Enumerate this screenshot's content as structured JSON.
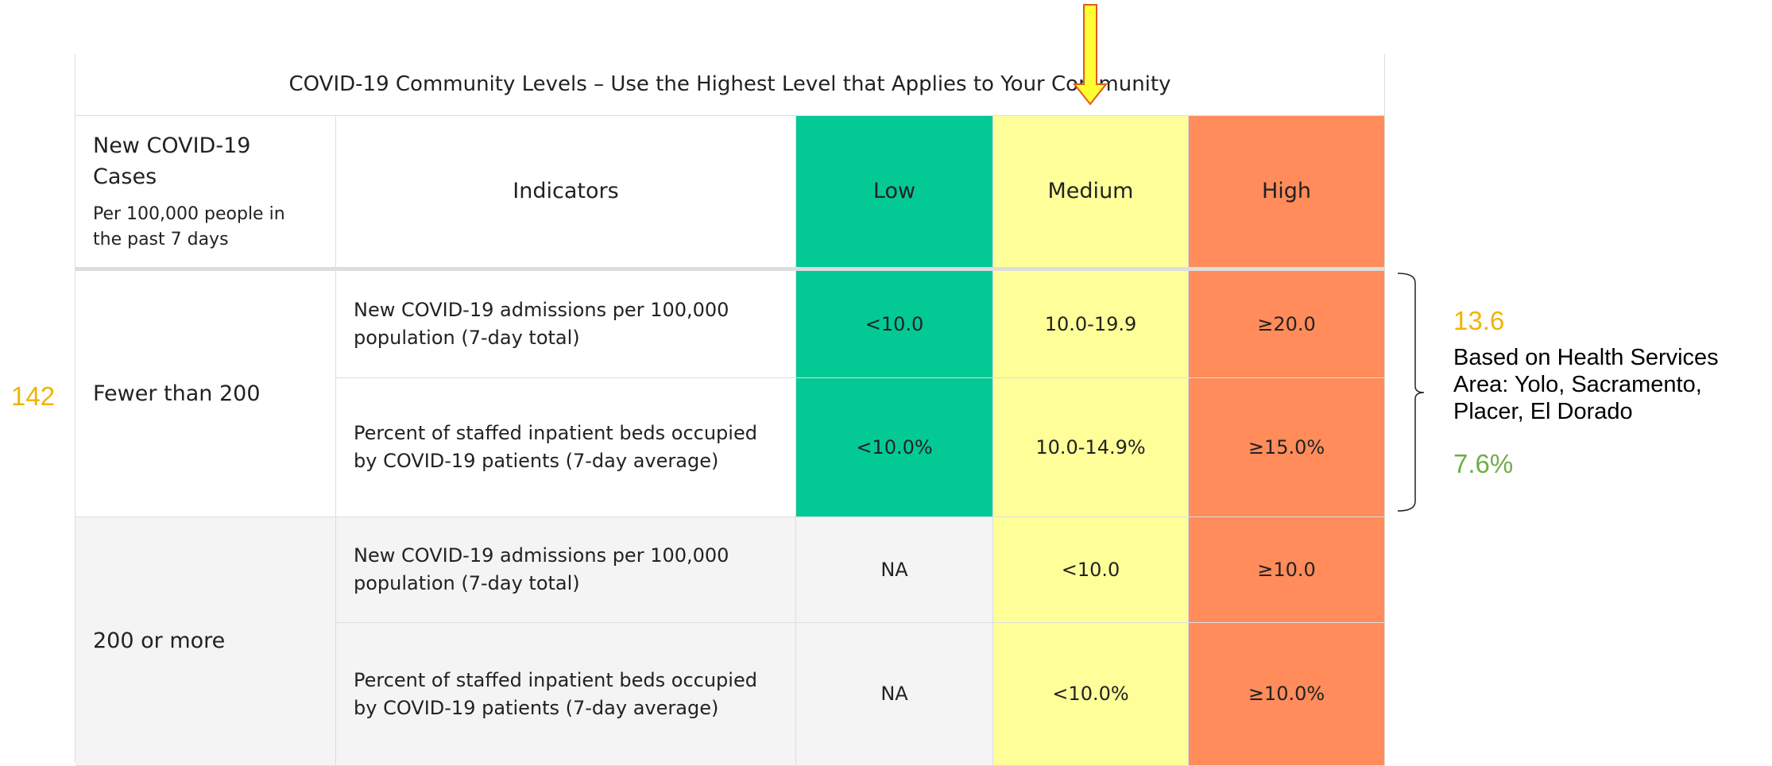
{
  "table": {
    "title": "COVID-19 Community Levels – Use the Highest Level that Applies to Your Community",
    "header": {
      "cases": "New COVID-19 Cases",
      "cases_sub": "Per 100,000 people in the past 7 days",
      "indicators": "Indicators",
      "low": "Low",
      "medium": "Medium",
      "high": "High"
    },
    "groups": [
      {
        "label": "Fewer than 200",
        "rows": [
          [
            "New COVID-19 admissions per 100,000 population (7-day total)",
            "<10.0",
            "10.0-19.9",
            "≥20.0"
          ],
          [
            "Percent of staffed inpatient beds occupied by COVID-19 patients (7-day average)",
            "<10.0%",
            "10.0-14.9%",
            "≥15.0%"
          ]
        ]
      },
      {
        "label": "200 or more",
        "rows": [
          [
            "New COVID-19 admissions per 100,000 population (7-day total)",
            "NA",
            "<10.0",
            "≥10.0"
          ],
          [
            "Percent of staffed inpatient beds occupied by COVID-19 patients (7-day average)",
            "NA",
            "<10.0%",
            "≥10.0%"
          ]
        ]
      }
    ]
  },
  "annotations": {
    "cases": "142",
    "admissions": "13.6",
    "note": "Based on Health Services Area: Yolo, Sacramento, Placer, El Dorado",
    "beds": "7.6%"
  }
}
